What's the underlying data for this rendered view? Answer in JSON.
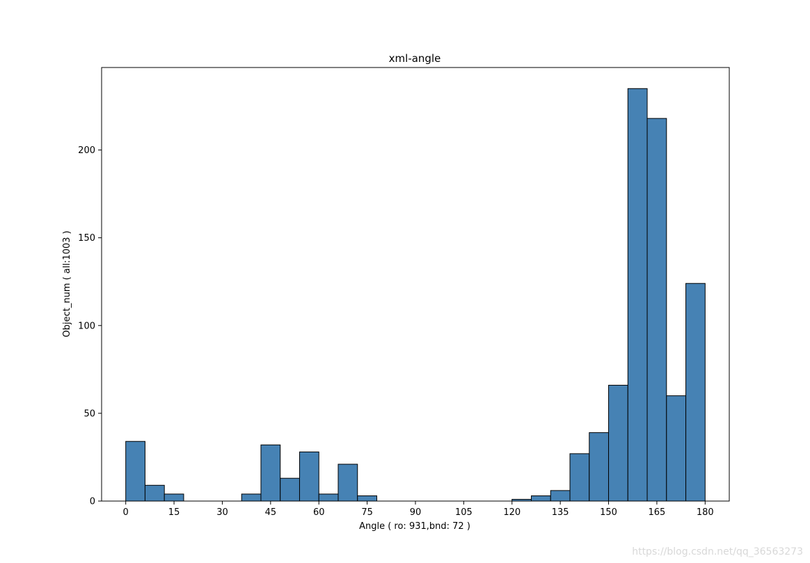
{
  "chart_data": {
    "type": "bar",
    "title": "xml-angle",
    "xlabel": "Angle ( ro: 931,bnd: 72 )",
    "ylabel": "Object_num ( all:1003 )",
    "bin_width": 6,
    "x": [
      0,
      6,
      12,
      18,
      24,
      30,
      36,
      42,
      48,
      54,
      60,
      66,
      72,
      78,
      84,
      90,
      96,
      102,
      108,
      114,
      120,
      126,
      132,
      138,
      144,
      150,
      156,
      162,
      168,
      174
    ],
    "values": [
      34,
      9,
      4,
      0,
      0,
      0,
      4,
      32,
      13,
      28,
      4,
      21,
      3,
      0,
      0,
      0,
      0,
      0,
      0,
      0,
      1,
      3,
      6,
      27,
      39,
      66,
      235,
      218,
      60,
      124
    ],
    "xlim": [
      -7.5,
      187.5
    ],
    "ylim": [
      0,
      247
    ],
    "xticks": [
      0,
      15,
      30,
      45,
      60,
      75,
      90,
      105,
      120,
      135,
      150,
      165,
      180
    ],
    "yticks": [
      0,
      50,
      100,
      150,
      200
    ],
    "bar_color": "#4682b4",
    "edge_color": "#000000",
    "grid": false,
    "legend": "none"
  },
  "watermark": "https://blog.csdn.net/qq_36563273"
}
